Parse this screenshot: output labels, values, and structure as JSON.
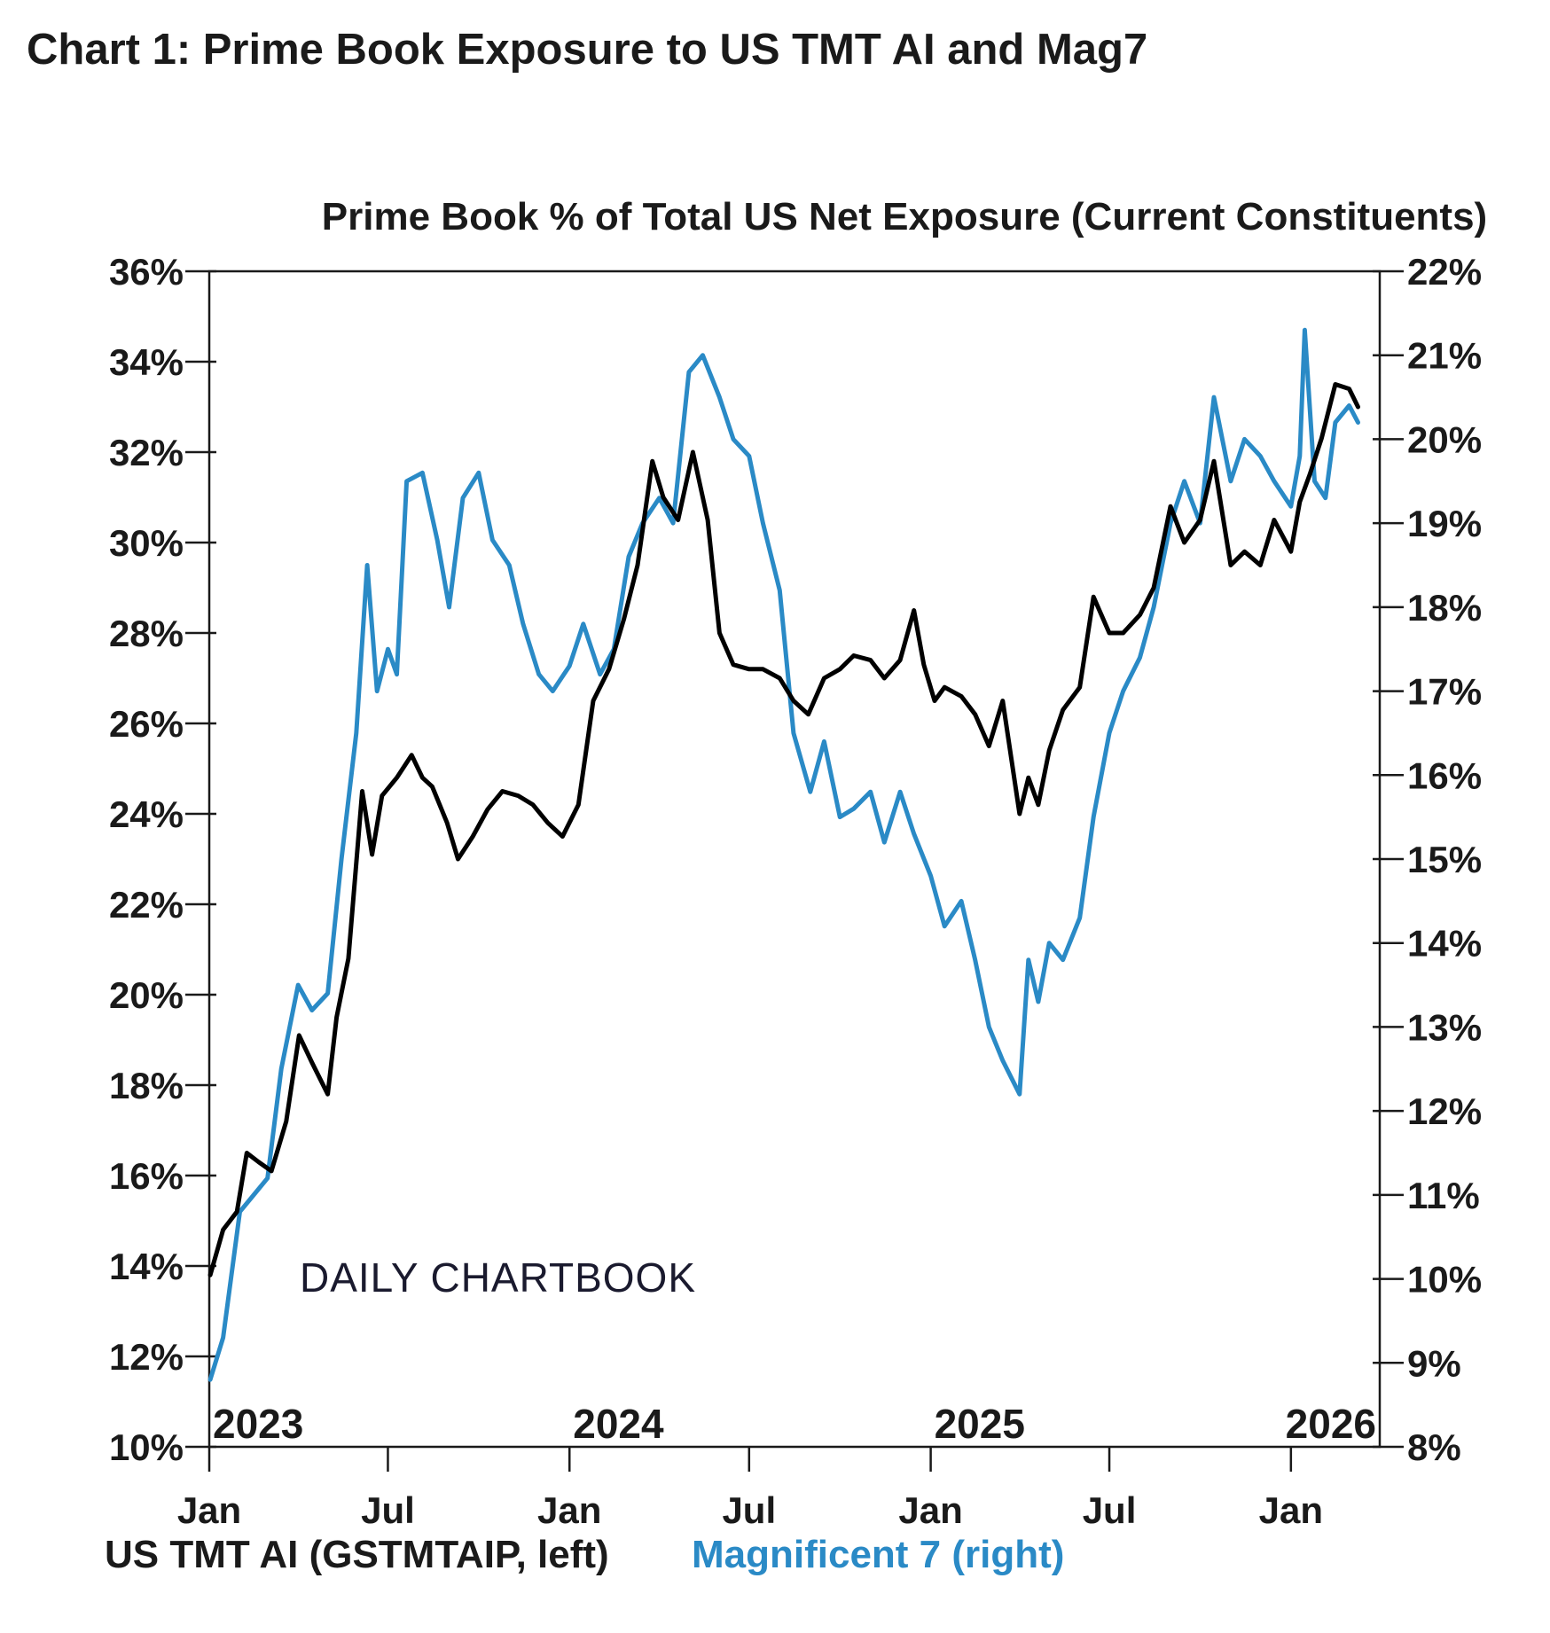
{
  "page_title": "Chart 1: Prime Book Exposure to US TMT AI and Mag7",
  "watermark": "DAILY CHARTBOOK",
  "colors": {
    "tmt": "#000000",
    "mag7": "#2a8ac6",
    "axis": "#1a1a1a",
    "text": "#1a1a1a"
  },
  "chart_data": {
    "type": "line",
    "title": "Prime Book % of Total US Net Exposure (Current Constituents)",
    "x_range": [
      "2023-01",
      "2026-04"
    ],
    "x_ticks": [
      {
        "date": "2023-01",
        "label": "Jan",
        "year": "2023"
      },
      {
        "date": "2023-07",
        "label": "Jul",
        "year": ""
      },
      {
        "date": "2024-01",
        "label": "Jan",
        "year": "2024"
      },
      {
        "date": "2024-07",
        "label": "Jul",
        "year": ""
      },
      {
        "date": "2025-01",
        "label": "Jan",
        "year": "2025"
      },
      {
        "date": "2025-07",
        "label": "Jul",
        "year": ""
      },
      {
        "date": "2026-01",
        "label": "Jan",
        "year": "2026"
      }
    ],
    "y_left": {
      "min": 10,
      "max": 36,
      "step": 2,
      "unit": "%"
    },
    "y_right": {
      "min": 8,
      "max": 22,
      "step": 1,
      "unit": "%"
    },
    "series": [
      {
        "name": "US TMT AI (GSTMTAIP, left)",
        "axis": "left",
        "color": "#000000",
        "points": [
          [
            "2023-01-02",
            13.8
          ],
          [
            "2023-01-15",
            14.8
          ],
          [
            "2023-01-29",
            15.2
          ],
          [
            "2023-02-08",
            16.5
          ],
          [
            "2023-02-20",
            16.3
          ],
          [
            "2023-03-05",
            16.1
          ],
          [
            "2023-03-20",
            17.2
          ],
          [
            "2023-04-02",
            19.1
          ],
          [
            "2023-04-15",
            18.5
          ],
          [
            "2023-05-01",
            17.8
          ],
          [
            "2023-05-10",
            19.5
          ],
          [
            "2023-05-22",
            20.8
          ],
          [
            "2023-06-05",
            24.5
          ],
          [
            "2023-06-15",
            23.1
          ],
          [
            "2023-06-25",
            24.4
          ],
          [
            "2023-07-10",
            24.8
          ],
          [
            "2023-07-25",
            25.3
          ],
          [
            "2023-08-05",
            24.8
          ],
          [
            "2023-08-15",
            24.6
          ],
          [
            "2023-08-30",
            23.8
          ],
          [
            "2023-09-10",
            23.0
          ],
          [
            "2023-09-25",
            23.5
          ],
          [
            "2023-10-10",
            24.1
          ],
          [
            "2023-10-25",
            24.5
          ],
          [
            "2023-11-10",
            24.4
          ],
          [
            "2023-11-25",
            24.2
          ],
          [
            "2023-12-10",
            23.8
          ],
          [
            "2023-12-25",
            23.5
          ],
          [
            "2024-01-10",
            24.2
          ],
          [
            "2024-01-25",
            26.5
          ],
          [
            "2024-02-10",
            27.2
          ],
          [
            "2024-02-25",
            28.3
          ],
          [
            "2024-03-10",
            29.5
          ],
          [
            "2024-03-25",
            31.8
          ],
          [
            "2024-04-05",
            31.0
          ],
          [
            "2024-04-20",
            30.5
          ],
          [
            "2024-05-05",
            32.0
          ],
          [
            "2024-05-20",
            30.5
          ],
          [
            "2024-06-01",
            28.0
          ],
          [
            "2024-06-15",
            27.3
          ],
          [
            "2024-07-01",
            27.2
          ],
          [
            "2024-07-15",
            27.2
          ],
          [
            "2024-08-01",
            27.0
          ],
          [
            "2024-08-15",
            26.5
          ],
          [
            "2024-08-30",
            26.2
          ],
          [
            "2024-09-15",
            27.0
          ],
          [
            "2024-10-01",
            27.2
          ],
          [
            "2024-10-15",
            27.5
          ],
          [
            "2024-11-01",
            27.4
          ],
          [
            "2024-11-15",
            27.0
          ],
          [
            "2024-12-01",
            27.4
          ],
          [
            "2024-12-15",
            28.5
          ],
          [
            "2024-12-25",
            27.3
          ],
          [
            "2025-01-05",
            26.5
          ],
          [
            "2025-01-15",
            26.8
          ],
          [
            "2025-02-01",
            26.6
          ],
          [
            "2025-02-15",
            26.2
          ],
          [
            "2025-03-01",
            25.5
          ],
          [
            "2025-03-15",
            26.5
          ],
          [
            "2025-04-01",
            24.0
          ],
          [
            "2025-04-10",
            24.8
          ],
          [
            "2025-04-20",
            24.2
          ],
          [
            "2025-05-01",
            25.4
          ],
          [
            "2025-05-15",
            26.3
          ],
          [
            "2025-06-01",
            26.8
          ],
          [
            "2025-06-15",
            28.8
          ],
          [
            "2025-07-01",
            28.0
          ],
          [
            "2025-07-15",
            28.0
          ],
          [
            "2025-08-01",
            28.4
          ],
          [
            "2025-08-15",
            29.0
          ],
          [
            "2025-09-01",
            30.8
          ],
          [
            "2025-09-15",
            30.0
          ],
          [
            "2025-10-01",
            30.5
          ],
          [
            "2025-10-15",
            31.8
          ],
          [
            "2025-11-01",
            29.5
          ],
          [
            "2025-11-15",
            29.8
          ],
          [
            "2025-12-01",
            29.5
          ],
          [
            "2025-12-15",
            30.5
          ],
          [
            "2026-01-01",
            29.8
          ],
          [
            "2026-01-10",
            30.9
          ],
          [
            "2026-01-20",
            31.5
          ],
          [
            "2026-02-01",
            32.3
          ],
          [
            "2026-02-15",
            33.5
          ],
          [
            "2026-03-01",
            33.4
          ],
          [
            "2026-03-10",
            33.0
          ]
        ]
      },
      {
        "name": "Magnificent 7 (right)",
        "axis": "right",
        "color": "#2a8ac6",
        "points": [
          [
            "2023-01-02",
            8.8
          ],
          [
            "2023-01-15",
            9.3
          ],
          [
            "2023-02-01",
            10.8
          ],
          [
            "2023-02-15",
            11.0
          ],
          [
            "2023-03-01",
            11.2
          ],
          [
            "2023-03-15",
            12.5
          ],
          [
            "2023-04-01",
            13.5
          ],
          [
            "2023-04-15",
            13.2
          ],
          [
            "2023-05-01",
            13.4
          ],
          [
            "2023-05-15",
            15.0
          ],
          [
            "2023-05-30",
            16.5
          ],
          [
            "2023-06-10",
            18.5
          ],
          [
            "2023-06-20",
            17.0
          ],
          [
            "2023-07-01",
            17.5
          ],
          [
            "2023-07-10",
            17.2
          ],
          [
            "2023-07-20",
            19.5
          ],
          [
            "2023-08-05",
            19.6
          ],
          [
            "2023-08-20",
            18.8
          ],
          [
            "2023-09-01",
            18.0
          ],
          [
            "2023-09-15",
            19.3
          ],
          [
            "2023-10-01",
            19.6
          ],
          [
            "2023-10-15",
            18.8
          ],
          [
            "2023-11-01",
            18.5
          ],
          [
            "2023-11-15",
            17.8
          ],
          [
            "2023-12-01",
            17.2
          ],
          [
            "2023-12-15",
            17.0
          ],
          [
            "2024-01-01",
            17.3
          ],
          [
            "2024-01-15",
            17.8
          ],
          [
            "2024-02-01",
            17.2
          ],
          [
            "2024-02-15",
            17.5
          ],
          [
            "2024-03-01",
            18.6
          ],
          [
            "2024-03-15",
            19.0
          ],
          [
            "2024-04-01",
            19.3
          ],
          [
            "2024-04-15",
            19.0
          ],
          [
            "2024-05-01",
            20.8
          ],
          [
            "2024-05-15",
            21.0
          ],
          [
            "2024-06-01",
            20.5
          ],
          [
            "2024-06-15",
            20.0
          ],
          [
            "2024-07-01",
            19.8
          ],
          [
            "2024-07-15",
            19.0
          ],
          [
            "2024-08-01",
            18.2
          ],
          [
            "2024-08-15",
            16.5
          ],
          [
            "2024-09-01",
            15.8
          ],
          [
            "2024-09-15",
            16.4
          ],
          [
            "2024-10-01",
            15.5
          ],
          [
            "2024-10-15",
            15.6
          ],
          [
            "2024-11-01",
            15.8
          ],
          [
            "2024-11-15",
            15.2
          ],
          [
            "2024-12-01",
            15.8
          ],
          [
            "2024-12-15",
            15.3
          ],
          [
            "2025-01-01",
            14.8
          ],
          [
            "2025-01-15",
            14.2
          ],
          [
            "2025-02-01",
            14.5
          ],
          [
            "2025-02-15",
            13.8
          ],
          [
            "2025-03-01",
            13.0
          ],
          [
            "2025-03-15",
            12.6
          ],
          [
            "2025-04-01",
            12.2
          ],
          [
            "2025-04-10",
            13.8
          ],
          [
            "2025-04-20",
            13.3
          ],
          [
            "2025-05-01",
            14.0
          ],
          [
            "2025-05-15",
            13.8
          ],
          [
            "2025-06-01",
            14.3
          ],
          [
            "2025-06-15",
            15.5
          ],
          [
            "2025-07-01",
            16.5
          ],
          [
            "2025-07-15",
            17.0
          ],
          [
            "2025-08-01",
            17.4
          ],
          [
            "2025-08-15",
            18.0
          ],
          [
            "2025-09-01",
            19.0
          ],
          [
            "2025-09-15",
            19.5
          ],
          [
            "2025-10-01",
            19.0
          ],
          [
            "2025-10-15",
            20.5
          ],
          [
            "2025-11-01",
            19.5
          ],
          [
            "2025-11-15",
            20.0
          ],
          [
            "2025-12-01",
            19.8
          ],
          [
            "2025-12-15",
            19.5
          ],
          [
            "2026-01-01",
            19.2
          ],
          [
            "2026-01-10",
            19.8
          ],
          [
            "2026-01-15",
            21.3
          ],
          [
            "2026-01-25",
            19.5
          ],
          [
            "2026-02-05",
            19.3
          ],
          [
            "2026-02-15",
            20.2
          ],
          [
            "2026-03-01",
            20.4
          ],
          [
            "2026-03-10",
            20.2
          ]
        ]
      }
    ]
  }
}
